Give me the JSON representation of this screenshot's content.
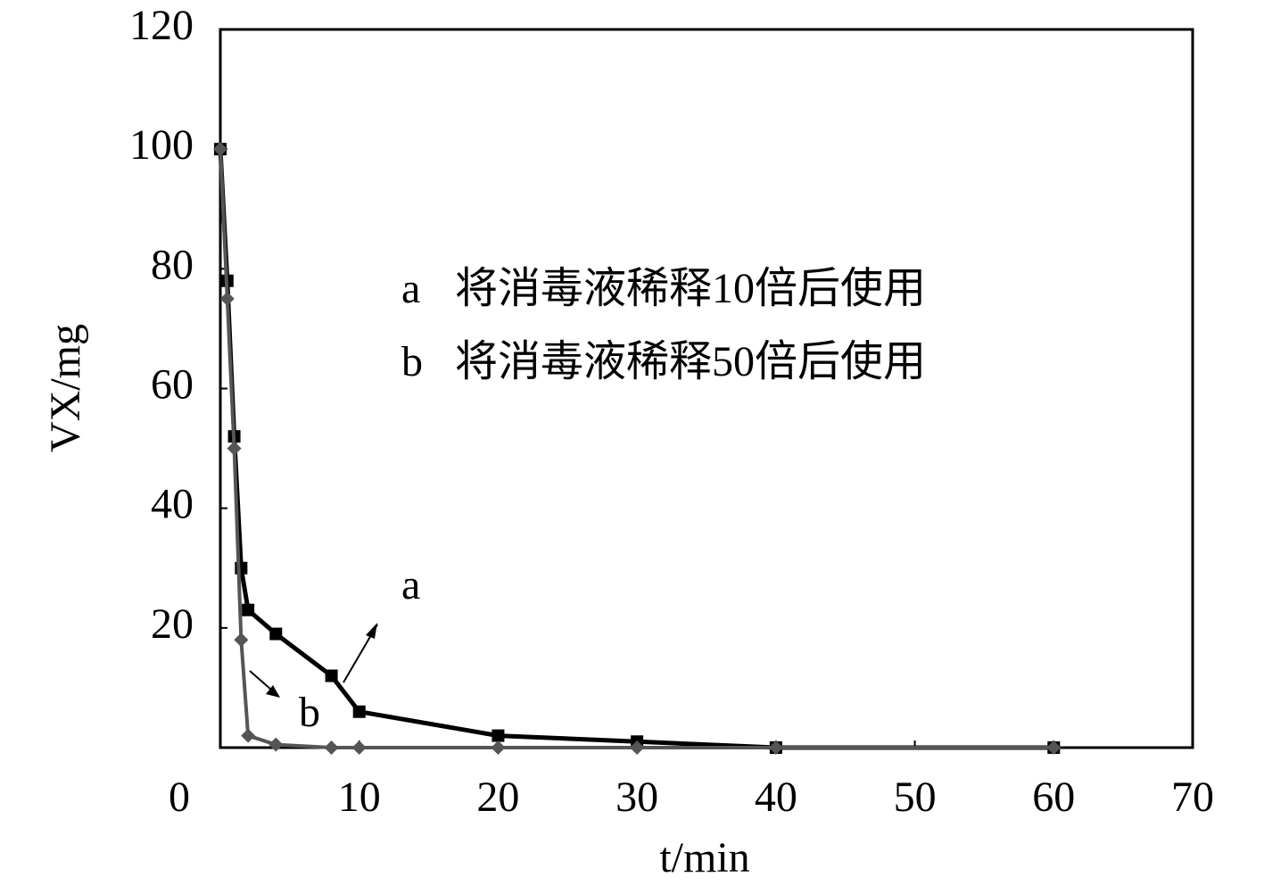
{
  "chart_data": {
    "type": "line",
    "x_label": "t/min",
    "y_label": "VX/mg",
    "x": [
      0,
      0.5,
      1,
      1.5,
      2,
      4,
      8,
      10,
      20,
      30,
      40,
      60
    ],
    "series": [
      {
        "label": "a",
        "name": "将消毒液稀释10倍后使用",
        "color": "#000000",
        "marker": "square",
        "values": [
          100,
          78,
          52,
          30,
          23,
          19,
          12,
          6,
          2,
          1,
          0,
          0
        ]
      },
      {
        "label": "b",
        "name": "将消毒液稀释50倍后使用",
        "color": "#555555",
        "marker": "diamond",
        "values": [
          100,
          75,
          50,
          18,
          2,
          0.5,
          0,
          0,
          0,
          0,
          0,
          0
        ]
      }
    ],
    "annotations": [
      "a",
      "b"
    ],
    "xlim": [
      0,
      70
    ],
    "xticks": [
      0,
      10,
      20,
      30,
      40,
      50,
      60,
      70
    ],
    "ylim": [
      0,
      120
    ],
    "yticks": [
      20,
      40,
      60,
      80,
      100,
      120
    ]
  }
}
